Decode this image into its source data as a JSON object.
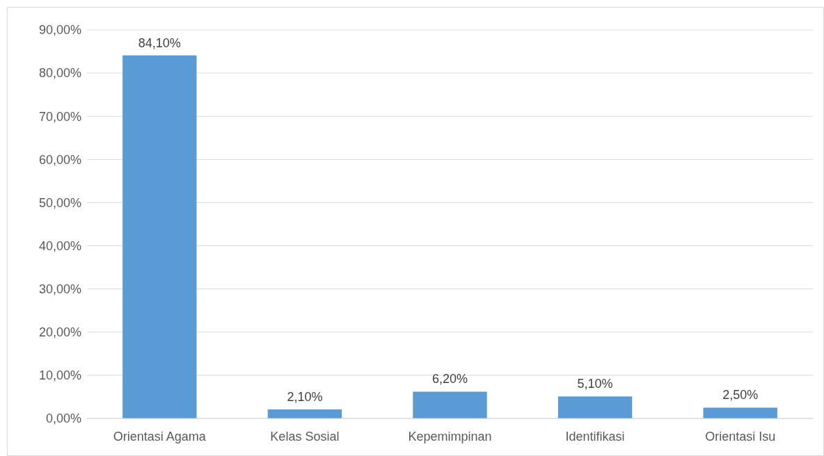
{
  "chart_data": {
    "type": "bar",
    "categories": [
      "Orientasi Agama",
      "Kelas Sosial",
      "Kepemimpinan",
      "Identifikasi",
      "Orientasi Isu"
    ],
    "values": [
      84.1,
      2.1,
      6.2,
      5.1,
      2.5
    ],
    "value_labels": [
      "84,10%",
      "2,10%",
      "6,20%",
      "5,10%",
      "2,50%"
    ],
    "color": "#5b9bd5",
    "ylim": [
      0,
      90
    ],
    "yticks": [
      {
        "value": 0,
        "label": "0,00%"
      },
      {
        "value": 10,
        "label": "10,00%"
      },
      {
        "value": 20,
        "label": "20,00%"
      },
      {
        "value": 30,
        "label": "30,00%"
      },
      {
        "value": 40,
        "label": "40,00%"
      },
      {
        "value": 50,
        "label": "50,00%"
      },
      {
        "value": 60,
        "label": "60,00%"
      },
      {
        "value": 70,
        "label": "70,00%"
      },
      {
        "value": 80,
        "label": "80,00%"
      },
      {
        "value": 90,
        "label": "90,00%"
      }
    ],
    "grid": "y"
  }
}
